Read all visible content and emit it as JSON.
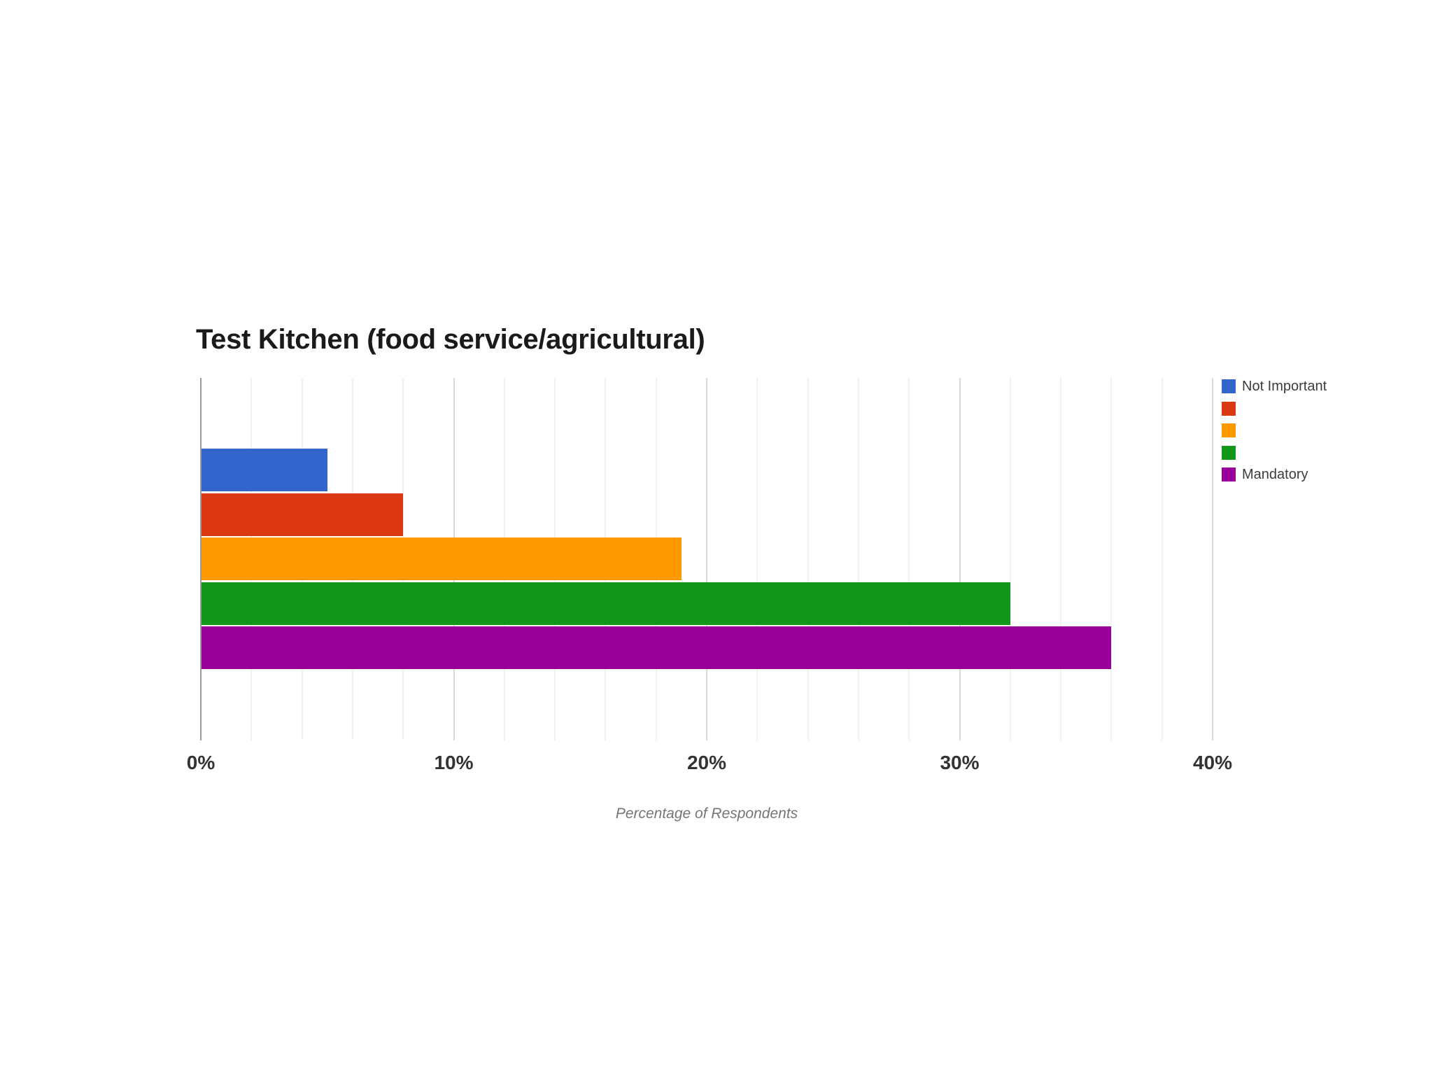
{
  "colors": {
    "background": "#ffffff",
    "title_text": "#1a1a1a",
    "tick_text": "#333333",
    "legend_text": "#3c3c3c",
    "axis_title_text": "#757575",
    "axis_line": "#999999",
    "major_gridline": "#d9d9d9",
    "minor_gridline": "#f1f1f1"
  },
  "chart_data": {
    "type": "bar",
    "orientation": "horizontal",
    "title": "Test Kitchen (food service/agricultural)",
    "xlabel": "Percentage of Respondents",
    "ylabel": "",
    "xlim": [
      0,
      40
    ],
    "x_ticks": [
      {
        "value": 0,
        "label": "0%"
      },
      {
        "value": 10,
        "label": "10%"
      },
      {
        "value": 20,
        "label": "20%"
      },
      {
        "value": 30,
        "label": "30%"
      },
      {
        "value": 40,
        "label": "40%"
      }
    ],
    "minor_grid_step": 2,
    "major_grid_step": 10,
    "grid": true,
    "legend_position": "right",
    "series": [
      {
        "name": "Not Important",
        "value": 5,
        "color": "#3366cc"
      },
      {
        "name": "",
        "value": 8,
        "color": "#dc3912"
      },
      {
        "name": "",
        "value": 19,
        "color": "#ff9900"
      },
      {
        "name": "",
        "value": 32,
        "color": "#109618"
      },
      {
        "name": "Mandatory",
        "value": 36,
        "color": "#990099"
      }
    ]
  }
}
